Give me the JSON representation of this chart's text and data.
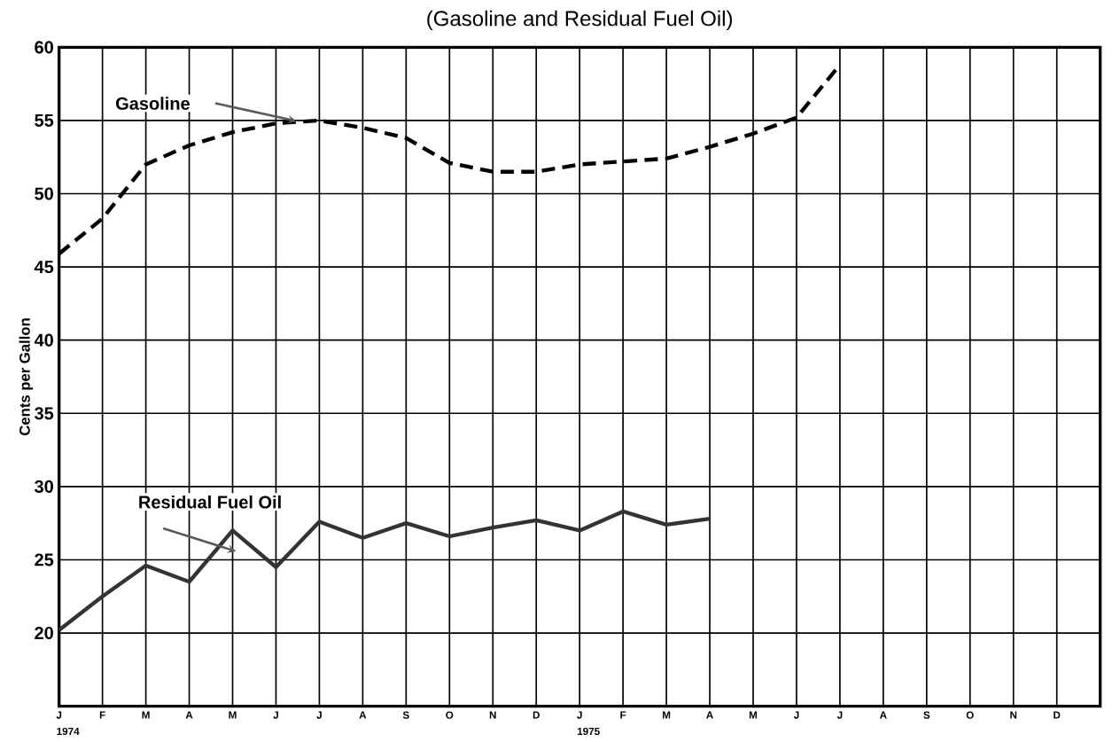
{
  "chart_data": {
    "type": "line",
    "title": "(Gasoline and Residual Fuel Oil)",
    "ylabel": "Cents per Gallon",
    "categories": [
      "J",
      "F",
      "M",
      "A",
      "M",
      "J",
      "J",
      "A",
      "S",
      "O",
      "N",
      "D",
      "J",
      "F",
      "M",
      "A",
      "M",
      "J",
      "J",
      "A",
      "S",
      "O",
      "N",
      "D"
    ],
    "series": [
      {
        "name": "Gasoline",
        "color": "#000000",
        "line_style": "dashed",
        "values": [
          45.9,
          48.3,
          52.0,
          53.3,
          54.2,
          54.8,
          55.0,
          54.5,
          53.8,
          52.1,
          51.5,
          51.5,
          52.0,
          52.2,
          52.4,
          53.2,
          54.1,
          55.2,
          58.8,
          null,
          null,
          null,
          null,
          null
        ]
      },
      {
        "name": "Residual Fuel Oil",
        "color": "#333333",
        "line_style": "solid",
        "values": [
          20.2,
          22.5,
          24.6,
          23.5,
          27.0,
          24.5,
          27.6,
          26.5,
          27.5,
          26.6,
          27.2,
          27.7,
          27.0,
          28.3,
          27.4,
          27.8,
          null,
          null,
          null,
          null,
          null,
          null,
          null,
          null
        ]
      }
    ],
    "ylim": [
      15,
      60
    ],
    "yticks": [
      20,
      25,
      30,
      35,
      40,
      45,
      50,
      55,
      60
    ],
    "annotations": [
      "1974",
      "1975"
    ],
    "grid": true,
    "marker": "none"
  }
}
